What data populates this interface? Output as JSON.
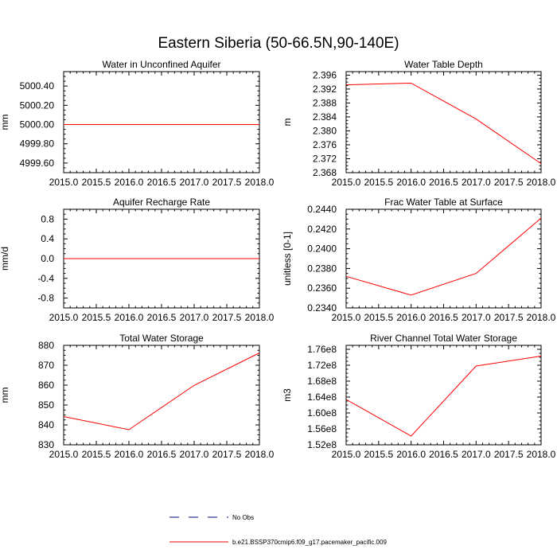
{
  "figure": {
    "title": "Eastern Siberia (50-66.5N,90-140E)",
    "legend": {
      "position": "bottom-center",
      "entries": [
        {
          "label": "No Obs",
          "color": "#000080",
          "style": "dashed"
        },
        {
          "label": "b.e21.BSSP370cmip6.f09_g17.pacemaker_pacific.009",
          "color": "#ff0000",
          "style": "solid"
        }
      ]
    }
  },
  "chart_data": [
    {
      "type": "line",
      "title": "Water in Unconfined Aquifer",
      "xlabel": "",
      "ylabel": "mm",
      "xlim": [
        2015,
        2018
      ],
      "ylim": [
        4999.5,
        5000.55
      ],
      "xticks": [
        2015.0,
        2015.5,
        2016.0,
        2016.5,
        2017.0,
        2017.5,
        2018.0
      ],
      "xtick_labels": [
        "2015.0",
        "2015.5",
        "2016.0",
        "2016.5",
        "2017.0",
        "2017.5",
        "2018.0"
      ],
      "yticks": [
        4999.6,
        4999.8,
        5000.0,
        5000.2,
        5000.4
      ],
      "ytick_labels": [
        "4999.60",
        "4999.80",
        "5000.00",
        "5000.20",
        "5000.40"
      ],
      "series": [
        {
          "name": "b.e21.BSSP370cmip6.f09_g17.pacemaker_pacific.009",
          "color": "#ff0000",
          "x": [
            2015,
            2016,
            2017,
            2018
          ],
          "y": [
            5000.0,
            5000.0,
            5000.0,
            5000.0
          ]
        }
      ]
    },
    {
      "type": "line",
      "title": "Water Table Depth",
      "xlabel": "",
      "ylabel": "m",
      "xlim": [
        2015,
        2018
      ],
      "ylim": [
        2.368,
        2.397
      ],
      "xticks": [
        2015.0,
        2015.5,
        2016.0,
        2016.5,
        2017.0,
        2017.5,
        2018.0
      ],
      "xtick_labels": [
        "2015.0",
        "2015.5",
        "2016.0",
        "2016.5",
        "2017.0",
        "2017.5",
        "2018.0"
      ],
      "yticks": [
        2.368,
        2.372,
        2.376,
        2.38,
        2.384,
        2.388,
        2.392,
        2.396
      ],
      "ytick_labels": [
        "2.368",
        "2.372",
        "2.376",
        "2.380",
        "2.384",
        "2.388",
        "2.392",
        "2.396"
      ],
      "series": [
        {
          "name": "b.e21.BSSP370cmip6.f09_g17.pacemaker_pacific.009",
          "color": "#ff0000",
          "x": [
            2015,
            2016,
            2017,
            2018
          ],
          "y": [
            2.3932,
            2.3937,
            2.3834,
            2.3706
          ]
        }
      ]
    },
    {
      "type": "line",
      "title": "Aquifer Recharge Rate",
      "xlabel": "",
      "ylabel": "mm/d",
      "xlim": [
        2015,
        2018
      ],
      "ylim": [
        -1.0,
        1.0
      ],
      "xticks": [
        2015.0,
        2015.5,
        2016.0,
        2016.5,
        2017.0,
        2017.5,
        2018.0
      ],
      "xtick_labels": [
        "2015.0",
        "2015.5",
        "2016.0",
        "2016.5",
        "2017.0",
        "2017.5",
        "2018.0"
      ],
      "yticks": [
        -0.8,
        -0.4,
        0.0,
        0.4,
        0.8
      ],
      "ytick_labels": [
        "-0.8",
        "-0.4",
        "0.0",
        "0.4",
        "0.8"
      ],
      "series": [
        {
          "name": "b.e21.BSSP370cmip6.f09_g17.pacemaker_pacific.009",
          "color": "#ff0000",
          "x": [
            2015,
            2016,
            2017,
            2018
          ],
          "y": [
            0.0,
            0.0,
            0.0,
            0.0
          ]
        }
      ]
    },
    {
      "type": "line",
      "title": "Frac Water Table at Surface",
      "xlabel": "",
      "ylabel": "unitless [0-1]",
      "xlim": [
        2015,
        2018
      ],
      "ylim": [
        0.234,
        0.244
      ],
      "xticks": [
        2015.0,
        2015.5,
        2016.0,
        2016.5,
        2017.0,
        2017.5,
        2018.0
      ],
      "xtick_labels": [
        "2015.0",
        "2015.5",
        "2016.0",
        "2016.5",
        "2017.0",
        "2017.5",
        "2018.0"
      ],
      "yticks": [
        0.234,
        0.236,
        0.238,
        0.24,
        0.242,
        0.244
      ],
      "ytick_labels": [
        "0.2340",
        "0.2360",
        "0.2380",
        "0.2400",
        "0.2420",
        "0.2440"
      ],
      "series": [
        {
          "name": "b.e21.BSSP370cmip6.f09_g17.pacemaker_pacific.009",
          "color": "#ff0000",
          "x": [
            2015,
            2016,
            2017,
            2018
          ],
          "y": [
            0.2372,
            0.2353,
            0.2375,
            0.2431
          ]
        }
      ]
    },
    {
      "type": "line",
      "title": "Total Water Storage",
      "xlabel": "",
      "ylabel": "mm",
      "xlim": [
        2015,
        2018
      ],
      "ylim": [
        830,
        880
      ],
      "xticks": [
        2015.0,
        2015.5,
        2016.0,
        2016.5,
        2017.0,
        2017.5,
        2018.0
      ],
      "xtick_labels": [
        "2015.0",
        "2015.5",
        "2016.0",
        "2016.5",
        "2017.0",
        "2017.5",
        "2018.0"
      ],
      "yticks": [
        830,
        840,
        850,
        860,
        870,
        880
      ],
      "ytick_labels": [
        "830",
        "840",
        "850",
        "860",
        "870",
        "880"
      ],
      "series": [
        {
          "name": "b.e21.BSSP370cmip6.f09_g17.pacemaker_pacific.009",
          "color": "#ff0000",
          "x": [
            2015,
            2016,
            2017,
            2018
          ],
          "y": [
            844.2,
            837.6,
            859.9,
            876.2
          ]
        }
      ]
    },
    {
      "type": "line",
      "title": "River Channel Total Water Storage",
      "xlabel": "",
      "ylabel": "m3",
      "xlim": [
        2015,
        2018
      ],
      "ylim": [
        152000000,
        177000000
      ],
      "xticks": [
        2015.0,
        2015.5,
        2016.0,
        2016.5,
        2017.0,
        2017.5,
        2018.0
      ],
      "xtick_labels": [
        "2015.0",
        "2015.5",
        "2016.0",
        "2016.5",
        "2017.0",
        "2017.5",
        "2018.0"
      ],
      "yticks": [
        152000000,
        156000000,
        160000000,
        164000000,
        168000000,
        172000000,
        176000000
      ],
      "ytick_labels": [
        "1.52e8",
        "1.56e8",
        "1.60e8",
        "1.64e8",
        "1.68e8",
        "1.72e8",
        "1.76e8"
      ],
      "series": [
        {
          "name": "b.e21.BSSP370cmip6.f09_g17.pacemaker_pacific.009",
          "color": "#ff0000",
          "x": [
            2015,
            2016,
            2017,
            2018
          ],
          "y": [
            163400000,
            154200000,
            171800000,
            174300000
          ]
        }
      ]
    }
  ]
}
